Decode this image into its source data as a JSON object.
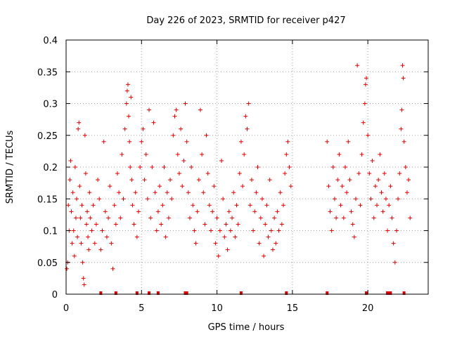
{
  "chart_data": {
    "type": "scatter",
    "title": "Day 226 of 2023, SRMTID for receiver p427",
    "xlabel": "GPS time / hours",
    "ylabel": "SRMTID / TECUs",
    "xlim": [
      0,
      24
    ],
    "ylim": [
      0,
      0.4
    ],
    "grid": true,
    "marker": "+",
    "marker_color": "#e00000",
    "xticks": [
      0,
      5,
      10,
      15,
      20
    ],
    "xtick_labels": [
      "0",
      "5",
      "10",
      "15",
      "20"
    ],
    "yticks": [
      0,
      0.05,
      0.1,
      0.15,
      0.2,
      0.25,
      0.3,
      0.35,
      0.4
    ],
    "ytick_labels": [
      "0",
      "0.05",
      "0.1",
      "0.15",
      "0.2",
      "0.25",
      "0.3",
      "0.35",
      "0.4"
    ],
    "series": [
      {
        "name": "SRMTID",
        "points": [
          [
            0.05,
            0.04
          ],
          [
            0.1,
            0.05
          ],
          [
            0.15,
            0.14
          ],
          [
            0.2,
            0.1
          ],
          [
            0.25,
            0.18
          ],
          [
            0.3,
            0.21
          ],
          [
            0.35,
            0.13
          ],
          [
            0.4,
            0.08
          ],
          [
            0.45,
            0.16
          ],
          [
            0.5,
            0.1
          ],
          [
            0.55,
            0.06
          ],
          [
            0.6,
            0.2
          ],
          [
            0.65,
            0.12
          ],
          [
            0.7,
            0.15
          ],
          [
            0.75,
            0.09
          ],
          [
            0.8,
            0.26
          ],
          [
            0.85,
            0.27
          ],
          [
            0.9,
            0.17
          ],
          [
            0.95,
            0.12
          ],
          [
            1.0,
            0.08
          ],
          [
            1.05,
            0.14
          ],
          [
            1.1,
            0.05
          ],
          [
            1.15,
            0.025
          ],
          [
            1.2,
            0.015
          ],
          [
            1.25,
            0.25
          ],
          [
            1.3,
            0.19
          ],
          [
            1.35,
            0.11
          ],
          [
            1.4,
            0.13
          ],
          [
            1.45,
            0.09
          ],
          [
            1.5,
            0.07
          ],
          [
            1.55,
            0.16
          ],
          [
            1.6,
            0.12
          ],
          [
            1.7,
            0.1
          ],
          [
            1.8,
            0.14
          ],
          [
            1.9,
            0.08
          ],
          [
            2.0,
            0.11
          ],
          [
            2.1,
            0.18
          ],
          [
            2.2,
            0.15
          ],
          [
            2.3,
            0.07
          ],
          [
            2.4,
            0.1
          ],
          [
            2.5,
            0.24
          ],
          [
            2.6,
            0.13
          ],
          [
            2.7,
            0.09
          ],
          [
            2.8,
            0.12
          ],
          [
            2.9,
            0.17
          ],
          [
            3.0,
            0.08
          ],
          [
            3.1,
            0.04
          ],
          [
            3.2,
            0.14
          ],
          [
            3.3,
            0.11
          ],
          [
            3.4,
            0.19
          ],
          [
            3.5,
            0.16
          ],
          [
            3.6,
            0.12
          ],
          [
            3.7,
            0.22
          ],
          [
            3.8,
            0.15
          ],
          [
            3.9,
            0.26
          ],
          [
            4.0,
            0.3
          ],
          [
            4.05,
            0.32
          ],
          [
            4.1,
            0.33
          ],
          [
            4.15,
            0.28
          ],
          [
            4.2,
            0.24
          ],
          [
            4.25,
            0.2
          ],
          [
            4.3,
            0.31
          ],
          [
            4.35,
            0.18
          ],
          [
            4.4,
            0.14
          ],
          [
            4.5,
            0.11
          ],
          [
            4.6,
            0.16
          ],
          [
            4.7,
            0.09
          ],
          [
            4.8,
            0.13
          ],
          [
            4.9,
            0.2
          ],
          [
            5.0,
            0.24
          ],
          [
            5.1,
            0.26
          ],
          [
            5.2,
            0.18
          ],
          [
            5.3,
            0.22
          ],
          [
            5.4,
            0.15
          ],
          [
            5.5,
            0.29
          ],
          [
            5.6,
            0.12
          ],
          [
            5.7,
            0.2
          ],
          [
            5.8,
            0.27
          ],
          [
            5.9,
            0.16
          ],
          [
            6.0,
            0.1
          ],
          [
            6.1,
            0.13
          ],
          [
            6.2,
            0.17
          ],
          [
            6.3,
            0.11
          ],
          [
            6.4,
            0.14
          ],
          [
            6.5,
            0.2
          ],
          [
            6.6,
            0.09
          ],
          [
            6.7,
            0.16
          ],
          [
            6.8,
            0.12
          ],
          [
            6.9,
            0.18
          ],
          [
            7.0,
            0.15
          ],
          [
            7.1,
            0.25
          ],
          [
            7.2,
            0.28
          ],
          [
            7.3,
            0.29
          ],
          [
            7.4,
            0.22
          ],
          [
            7.5,
            0.19
          ],
          [
            7.6,
            0.26
          ],
          [
            7.7,
            0.17
          ],
          [
            7.8,
            0.21
          ],
          [
            7.9,
            0.3
          ],
          [
            8.0,
            0.24
          ],
          [
            8.1,
            0.16
          ],
          [
            8.2,
            0.12
          ],
          [
            8.3,
            0.2
          ],
          [
            8.4,
            0.14
          ],
          [
            8.5,
            0.1
          ],
          [
            8.6,
            0.08
          ],
          [
            8.7,
            0.13
          ],
          [
            8.8,
            0.18
          ],
          [
            8.9,
            0.29
          ],
          [
            9.0,
            0.22
          ],
          [
            9.1,
            0.16
          ],
          [
            9.2,
            0.11
          ],
          [
            9.3,
            0.25
          ],
          [
            9.4,
            0.19
          ],
          [
            9.5,
            0.14
          ],
          [
            9.6,
            0.1
          ],
          [
            9.7,
            0.13
          ],
          [
            9.8,
            0.17
          ],
          [
            9.9,
            0.08
          ],
          [
            10.0,
            0.12
          ],
          [
            10.1,
            0.06
          ],
          [
            10.2,
            0.1
          ],
          [
            10.3,
            0.21
          ],
          [
            10.4,
            0.15
          ],
          [
            10.5,
            0.09
          ],
          [
            10.6,
            0.11
          ],
          [
            10.7,
            0.07
          ],
          [
            10.8,
            0.13
          ],
          [
            10.9,
            0.1
          ],
          [
            11.0,
            0.12
          ],
          [
            11.1,
            0.16
          ],
          [
            11.2,
            0.09
          ],
          [
            11.3,
            0.14
          ],
          [
            11.4,
            0.11
          ],
          [
            11.5,
            0.19
          ],
          [
            11.6,
            0.24
          ],
          [
            11.7,
            0.17
          ],
          [
            11.8,
            0.22
          ],
          [
            11.9,
            0.28
          ],
          [
            12.0,
            0.26
          ],
          [
            12.1,
            0.3
          ],
          [
            12.2,
            0.14
          ],
          [
            12.3,
            0.18
          ],
          [
            12.4,
            0.1
          ],
          [
            12.5,
            0.13
          ],
          [
            12.6,
            0.16
          ],
          [
            12.7,
            0.2
          ],
          [
            12.8,
            0.08
          ],
          [
            12.9,
            0.12
          ],
          [
            13.0,
            0.15
          ],
          [
            13.1,
            0.06
          ],
          [
            13.2,
            0.11
          ],
          [
            13.3,
            0.14
          ],
          [
            13.4,
            0.09
          ],
          [
            13.5,
            0.18
          ],
          [
            13.6,
            0.1
          ],
          [
            13.7,
            0.07
          ],
          [
            13.8,
            0.12
          ],
          [
            13.9,
            0.08
          ],
          [
            14.0,
            0.13
          ],
          [
            14.1,
            0.1
          ],
          [
            14.2,
            0.16
          ],
          [
            14.3,
            0.11
          ],
          [
            14.4,
            0.14
          ],
          [
            14.5,
            0.19
          ],
          [
            14.6,
            0.22
          ],
          [
            14.7,
            0.24
          ],
          [
            14.8,
            0.2
          ],
          [
            14.9,
            0.17
          ],
          [
            17.3,
            0.24
          ],
          [
            17.4,
            0.17
          ],
          [
            17.5,
            0.13
          ],
          [
            17.6,
            0.1
          ],
          [
            17.7,
            0.2
          ],
          [
            17.8,
            0.15
          ],
          [
            17.9,
            0.12
          ],
          [
            18.0,
            0.18
          ],
          [
            18.1,
            0.22
          ],
          [
            18.2,
            0.14
          ],
          [
            18.3,
            0.17
          ],
          [
            18.4,
            0.12
          ],
          [
            18.5,
            0.2
          ],
          [
            18.6,
            0.16
          ],
          [
            18.7,
            0.24
          ],
          [
            18.8,
            0.18
          ],
          [
            18.9,
            0.13
          ],
          [
            19.0,
            0.11
          ],
          [
            19.1,
            0.09
          ],
          [
            19.2,
            0.15
          ],
          [
            19.3,
            0.36
          ],
          [
            19.4,
            0.19
          ],
          [
            19.5,
            0.14
          ],
          [
            19.6,
            0.22
          ],
          [
            19.7,
            0.27
          ],
          [
            19.8,
            0.3
          ],
          [
            19.85,
            0.33
          ],
          [
            19.9,
            0.34
          ],
          [
            20.0,
            0.25
          ],
          [
            20.1,
            0.19
          ],
          [
            20.2,
            0.15
          ],
          [
            20.3,
            0.21
          ],
          [
            20.4,
            0.12
          ],
          [
            20.5,
            0.17
          ],
          [
            20.6,
            0.14
          ],
          [
            20.7,
            0.18
          ],
          [
            20.8,
            0.22
          ],
          [
            20.9,
            0.16
          ],
          [
            21.0,
            0.13
          ],
          [
            21.1,
            0.19
          ],
          [
            21.2,
            0.15
          ],
          [
            21.3,
            0.1
          ],
          [
            21.4,
            0.14
          ],
          [
            21.5,
            0.17
          ],
          [
            21.6,
            0.12
          ],
          [
            21.7,
            0.08
          ],
          [
            21.8,
            0.05
          ],
          [
            21.9,
            0.1
          ],
          [
            22.0,
            0.15
          ],
          [
            22.1,
            0.19
          ],
          [
            22.2,
            0.26
          ],
          [
            22.25,
            0.29
          ],
          [
            22.3,
            0.36
          ],
          [
            22.35,
            0.34
          ],
          [
            22.4,
            0.24
          ],
          [
            22.5,
            0.2
          ],
          [
            22.6,
            0.16
          ],
          [
            22.7,
            0.18
          ],
          [
            22.8,
            0.12
          ]
        ]
      }
    ],
    "zero_points_x": [
      2.3,
      3.3,
      4.7,
      5.5,
      6.1,
      7.9,
      8.0,
      11.6,
      14.6,
      17.3,
      19.9,
      21.3,
      21.4,
      21.5,
      22.4
    ]
  }
}
